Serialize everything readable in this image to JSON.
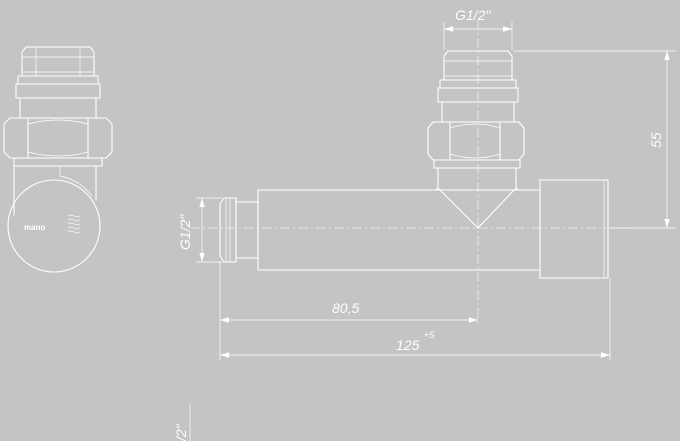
{
  "dimensions": {
    "top_thread": "G1/2\"",
    "side_thread": "G1/2\"",
    "height": "55",
    "length_inner": "80,5",
    "length_total": "125",
    "length_total_tolerance": "+5",
    "partial_label": "/2\""
  },
  "logo": {
    "text": "mano",
    "icon": "wave-lines-icon"
  },
  "colors": {
    "background": "#c4c4c4",
    "lines": "#ffffff"
  }
}
